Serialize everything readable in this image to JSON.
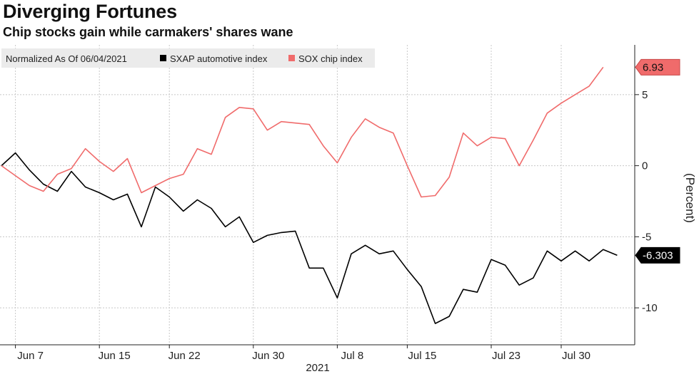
{
  "header": {
    "title": "Diverging Fortunes",
    "subtitle": "Chip stocks gain while carmakers' shares wane"
  },
  "chart_data": {
    "type": "line",
    "title": "Diverging Fortunes",
    "subtitle": "Chip stocks gain while carmakers' shares wane",
    "xlabel": "2021",
    "ylabel": "(Percent)",
    "ylim": [
      -12.6,
      8.5
    ],
    "yticks": [
      -10,
      -5,
      0,
      5
    ],
    "ytick_labels": [
      "-10",
      "-5",
      "0",
      "5"
    ],
    "xtick_labels": [
      "Jun 7",
      "Jun 15",
      "Jun 22",
      "Jun 30",
      "Jul 8",
      "Jul 15",
      "Jul 23",
      "Jul 30"
    ],
    "xtick_index": [
      1,
      7,
      12,
      18,
      24,
      29,
      35,
      40
    ],
    "grid": true,
    "legend": {
      "title": "Normalized As Of 06/04/2021",
      "position": "top-left",
      "entries": [
        "SXAP automotive index",
        "SOX chip index"
      ]
    },
    "series": [
      {
        "name": "SXAP automotive index",
        "color": "#000000",
        "last_label": "-6.303",
        "values": [
          0,
          0.9,
          -0.3,
          -1.3,
          -1.8,
          -0.4,
          -1.5,
          -1.9,
          -2.4,
          -2.0,
          -4.3,
          -1.5,
          -2.2,
          -3.2,
          -2.4,
          -3.0,
          -4.3,
          -3.6,
          -5.4,
          -4.9,
          -4.7,
          -4.6,
          -7.2,
          -7.2,
          -9.3,
          -6.2,
          -5.6,
          -6.2,
          -6.0,
          -7.3,
          -8.5,
          -11.1,
          -10.6,
          -8.7,
          -8.9,
          -6.6,
          -7.0,
          -8.4,
          -7.9,
          -6.0,
          -6.7,
          -6.0,
          -6.7,
          -5.9,
          -6.303
        ]
      },
      {
        "name": "SOX chip index",
        "color": "#f06b6b",
        "last_label": "6.93",
        "values": [
          0,
          -0.7,
          -1.4,
          -1.8,
          -0.6,
          -0.2,
          1.2,
          0.3,
          -0.4,
          0.5,
          -1.9,
          -1.4,
          -0.9,
          -0.6,
          1.2,
          0.8,
          3.4,
          4.1,
          4.0,
          2.5,
          3.1,
          3.0,
          2.9,
          1.4,
          0.2,
          2.0,
          3.3,
          2.7,
          2.3,
          0.0,
          -2.2,
          -2.1,
          -0.8,
          2.3,
          1.4,
          2.0,
          1.9,
          0.0,
          1.8,
          3.7,
          4.4,
          5.0,
          5.6,
          6.93
        ]
      }
    ]
  },
  "colors": {
    "auto": "#000000",
    "chip": "#f06b6b",
    "legend_bg": "#ebebeb",
    "grid": "#c8c8c8"
  }
}
